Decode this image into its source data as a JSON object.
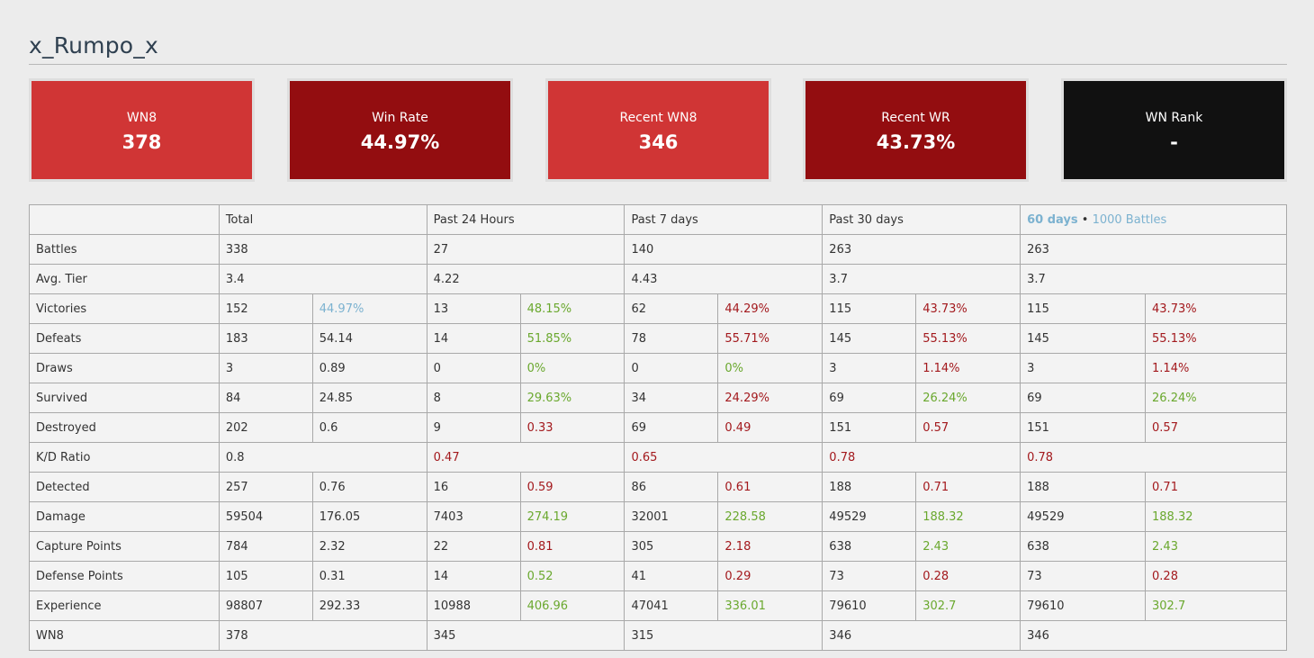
{
  "player": {
    "name": "x_Rumpo_x"
  },
  "cards": [
    {
      "label": "WN8",
      "value": "378",
      "color": "#d03535"
    },
    {
      "label": "Win Rate",
      "value": "44.97%",
      "color": "#930d10"
    },
    {
      "label": "Recent WN8",
      "value": "346",
      "color": "#d03535"
    },
    {
      "label": "Recent WR",
      "value": "43.73%",
      "color": "#930d10"
    },
    {
      "label": "WN Rank",
      "value": "-",
      "color": "#111111"
    }
  ],
  "table": {
    "headers": {
      "total": "Total",
      "h24": "Past 24 Hours",
      "d7": "Past 7 days",
      "d30": "Past 30 days",
      "d60": "60 days",
      "sep": "•",
      "b1000": "1000 Battles"
    },
    "rows": [
      {
        "label": "Battles",
        "span": true,
        "cols": [
          {
            "v": "338"
          },
          {
            "v": "27"
          },
          {
            "v": "140"
          },
          {
            "v": "263"
          },
          {
            "v": "263"
          }
        ]
      },
      {
        "label": "Avg. Tier",
        "span": true,
        "cols": [
          {
            "v": "3.4"
          },
          {
            "v": "4.22"
          },
          {
            "v": "4.43"
          },
          {
            "v": "3.7"
          },
          {
            "v": "3.7"
          }
        ]
      },
      {
        "label": "Victories",
        "cols": [
          {
            "v": "152",
            "r": "44.97%",
            "c": "blue"
          },
          {
            "v": "13",
            "r": "48.15%",
            "c": "good"
          },
          {
            "v": "62",
            "r": "44.29%",
            "c": "bad"
          },
          {
            "v": "115",
            "r": "43.73%",
            "c": "bad"
          },
          {
            "v": "115",
            "r": "43.73%",
            "c": "bad"
          }
        ]
      },
      {
        "label": "Defeats",
        "cols": [
          {
            "v": "183",
            "r": "54.14",
            "c": ""
          },
          {
            "v": "14",
            "r": "51.85%",
            "c": "good"
          },
          {
            "v": "78",
            "r": "55.71%",
            "c": "bad"
          },
          {
            "v": "145",
            "r": "55.13%",
            "c": "bad"
          },
          {
            "v": "145",
            "r": "55.13%",
            "c": "bad"
          }
        ]
      },
      {
        "label": "Draws",
        "cols": [
          {
            "v": "3",
            "r": "0.89",
            "c": ""
          },
          {
            "v": "0",
            "r": "0%",
            "c": "good"
          },
          {
            "v": "0",
            "r": "0%",
            "c": "good"
          },
          {
            "v": "3",
            "r": "1.14%",
            "c": "bad"
          },
          {
            "v": "3",
            "r": "1.14%",
            "c": "bad"
          }
        ]
      },
      {
        "label": "Survived",
        "cols": [
          {
            "v": "84",
            "r": "24.85",
            "c": ""
          },
          {
            "v": "8",
            "r": "29.63%",
            "c": "good"
          },
          {
            "v": "34",
            "r": "24.29%",
            "c": "bad"
          },
          {
            "v": "69",
            "r": "26.24%",
            "c": "good"
          },
          {
            "v": "69",
            "r": "26.24%",
            "c": "good"
          }
        ]
      },
      {
        "label": "Destroyed",
        "cols": [
          {
            "v": "202",
            "r": "0.6",
            "c": ""
          },
          {
            "v": "9",
            "r": "0.33",
            "c": "bad"
          },
          {
            "v": "69",
            "r": "0.49",
            "c": "bad"
          },
          {
            "v": "151",
            "r": "0.57",
            "c": "bad"
          },
          {
            "v": "151",
            "r": "0.57",
            "c": "bad"
          }
        ]
      },
      {
        "label": "K/D Ratio",
        "span": true,
        "cols": [
          {
            "v": "0.8",
            "c": ""
          },
          {
            "v": "0.47",
            "c": "bad"
          },
          {
            "v": "0.65",
            "c": "bad"
          },
          {
            "v": "0.78",
            "c": "bad"
          },
          {
            "v": "0.78",
            "c": "bad"
          }
        ]
      },
      {
        "label": "Detected",
        "cols": [
          {
            "v": "257",
            "r": "0.76",
            "c": ""
          },
          {
            "v": "16",
            "r": "0.59",
            "c": "bad"
          },
          {
            "v": "86",
            "r": "0.61",
            "c": "bad"
          },
          {
            "v": "188",
            "r": "0.71",
            "c": "bad"
          },
          {
            "v": "188",
            "r": "0.71",
            "c": "bad"
          }
        ]
      },
      {
        "label": "Damage",
        "cols": [
          {
            "v": "59504",
            "r": "176.05",
            "c": ""
          },
          {
            "v": "7403",
            "r": "274.19",
            "c": "good"
          },
          {
            "v": "32001",
            "r": "228.58",
            "c": "good"
          },
          {
            "v": "49529",
            "r": "188.32",
            "c": "good"
          },
          {
            "v": "49529",
            "r": "188.32",
            "c": "good"
          }
        ]
      },
      {
        "label": "Capture Points",
        "cols": [
          {
            "v": "784",
            "r": "2.32",
            "c": ""
          },
          {
            "v": "22",
            "r": "0.81",
            "c": "bad"
          },
          {
            "v": "305",
            "r": "2.18",
            "c": "bad"
          },
          {
            "v": "638",
            "r": "2.43",
            "c": "good"
          },
          {
            "v": "638",
            "r": "2.43",
            "c": "good"
          }
        ]
      },
      {
        "label": "Defense Points",
        "cols": [
          {
            "v": "105",
            "r": "0.31",
            "c": ""
          },
          {
            "v": "14",
            "r": "0.52",
            "c": "good"
          },
          {
            "v": "41",
            "r": "0.29",
            "c": "bad"
          },
          {
            "v": "73",
            "r": "0.28",
            "c": "bad"
          },
          {
            "v": "73",
            "r": "0.28",
            "c": "bad"
          }
        ]
      },
      {
        "label": "Experience",
        "cols": [
          {
            "v": "98807",
            "r": "292.33",
            "c": ""
          },
          {
            "v": "10988",
            "r": "406.96",
            "c": "good"
          },
          {
            "v": "47041",
            "r": "336.01",
            "c": "good"
          },
          {
            "v": "79610",
            "r": "302.7",
            "c": "good"
          },
          {
            "v": "79610",
            "r": "302.7",
            "c": "good"
          }
        ]
      },
      {
        "label": "WN8",
        "span": true,
        "cols": [
          {
            "v": "378"
          },
          {
            "v": "345"
          },
          {
            "v": "315"
          },
          {
            "v": "346"
          },
          {
            "v": "346"
          }
        ]
      }
    ]
  }
}
